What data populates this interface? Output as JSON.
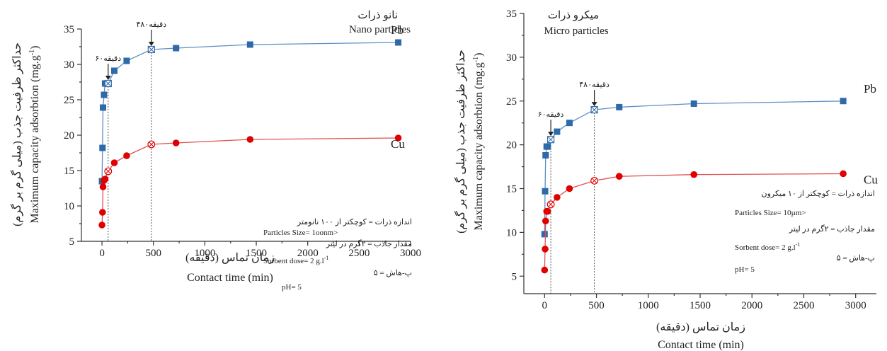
{
  "chart_data": [
    {
      "type": "line",
      "title_fa": "نانو ذرات",
      "title_en": "Nano particles",
      "xlabel_fa": "زمان تماس (دقیقه)",
      "xlabel": "Contact time (min)",
      "ylabel_fa": "حداکثر ظرفیت جذب (میلی گرم بر گرم)",
      "ylabel": "Maximum capacity adsorbtion (mg.g",
      "ylabel_sup": "-1",
      "ylabel_close": ")",
      "xlim": [
        -200,
        3000
      ],
      "ylim": [
        5,
        35
      ],
      "xticks": [
        0,
        500,
        1000,
        1500,
        2000,
        2500,
        3000
      ],
      "yticks": [
        5,
        10,
        15,
        20,
        25,
        30,
        35
      ],
      "series": [
        {
          "name": "Pb",
          "color": "#5b8fc4",
          "marker_color": "#2e69a8",
          "marker": "square",
          "x": [
            0,
            5,
            10,
            20,
            30,
            60,
            120,
            240,
            480,
            720,
            1440,
            2880
          ],
          "y": [
            13.5,
            18.2,
            23.9,
            25.7,
            27.3,
            27.3,
            29.1,
            30.5,
            32.1,
            32.3,
            32.8,
            33.1
          ],
          "hollow_index": [
            5,
            8
          ]
        },
        {
          "name": "Cu",
          "color": "#e05050",
          "marker_color": "#e00000",
          "marker": "circle",
          "x": [
            0,
            5,
            10,
            20,
            30,
            60,
            120,
            240,
            480,
            720,
            1440,
            2880
          ],
          "y": [
            7.3,
            9.1,
            12.7,
            13.6,
            13.8,
            14.9,
            16.1,
            17.1,
            18.7,
            18.9,
            19.4,
            19.6
          ],
          "hollow_index": [
            5,
            8
          ]
        }
      ],
      "annotations": [
        {
          "text": "۶۰دقیقه",
          "x": 60
        },
        {
          "text": "۴۸۰دقیقه",
          "x": 480
        }
      ],
      "notes": [
        "اندازه ذرات = کوچکتر از ۱۰۰ نانومتر",
        "Particles Size= 1oonm>",
        "مقدار جاذب = ۲گرم در لیتر",
        "Sorbent dose= 2 g.l",
        "پ-هاش = ۵",
        "pH= 5"
      ],
      "notes_sup": "-1"
    },
    {
      "type": "line",
      "title_fa": "میکرو ذرات",
      "title_en": "Micro particles",
      "xlabel_fa": "زمان تماس (دقیقه)",
      "xlabel": "Contact time (min)",
      "ylabel_fa": "حداکثر ظرفیت جذب (میلی گرم بر گرم)",
      "ylabel": "Maximum capacity adsorbtion (mg.g",
      "ylabel_sup": "-1",
      "ylabel_close": ")",
      "xlim": [
        -200,
        3200
      ],
      "ylim": [
        3,
        35
      ],
      "xticks": [
        0,
        500,
        1000,
        1500,
        2000,
        2500,
        3000
      ],
      "yticks": [
        5,
        10,
        15,
        20,
        25,
        30,
        35
      ],
      "series": [
        {
          "name": "Pb",
          "color": "#5b8fc4",
          "marker_color": "#2e69a8",
          "marker": "square",
          "x": [
            0,
            5,
            10,
            20,
            30,
            60,
            120,
            240,
            480,
            720,
            1440,
            2880
          ],
          "y": [
            9.8,
            14.7,
            18.8,
            19.8,
            19.8,
            20.6,
            21.5,
            22.5,
            24.0,
            24.3,
            24.7,
            25.0
          ],
          "hollow_index": [
            5,
            8
          ]
        },
        {
          "name": "Cu",
          "color": "#e05050",
          "marker_color": "#e00000",
          "marker": "circle",
          "x": [
            0,
            5,
            10,
            20,
            30,
            60,
            120,
            240,
            480,
            720,
            1440,
            2880
          ],
          "y": [
            5.7,
            8.1,
            11.3,
            12.4,
            12.4,
            13.2,
            14.0,
            15.0,
            15.9,
            16.4,
            16.6,
            16.7
          ],
          "hollow_index": [
            5,
            8
          ]
        }
      ],
      "annotations": [
        {
          "text": "۶۰دقیقه",
          "x": 60
        },
        {
          "text": "۴۸۰دقیقه",
          "x": 480
        }
      ],
      "notes": [
        "اندازه ذرات = کوچکتر از ۱۰ میکرون",
        "Particles Size= 10µm>",
        "مقدار جاذب = ۲گرم در لیتر",
        "Sorbent dose= 2 g.l",
        "پ-هاش = ۵",
        "pH= 5"
      ],
      "notes_sup": "-1"
    }
  ]
}
